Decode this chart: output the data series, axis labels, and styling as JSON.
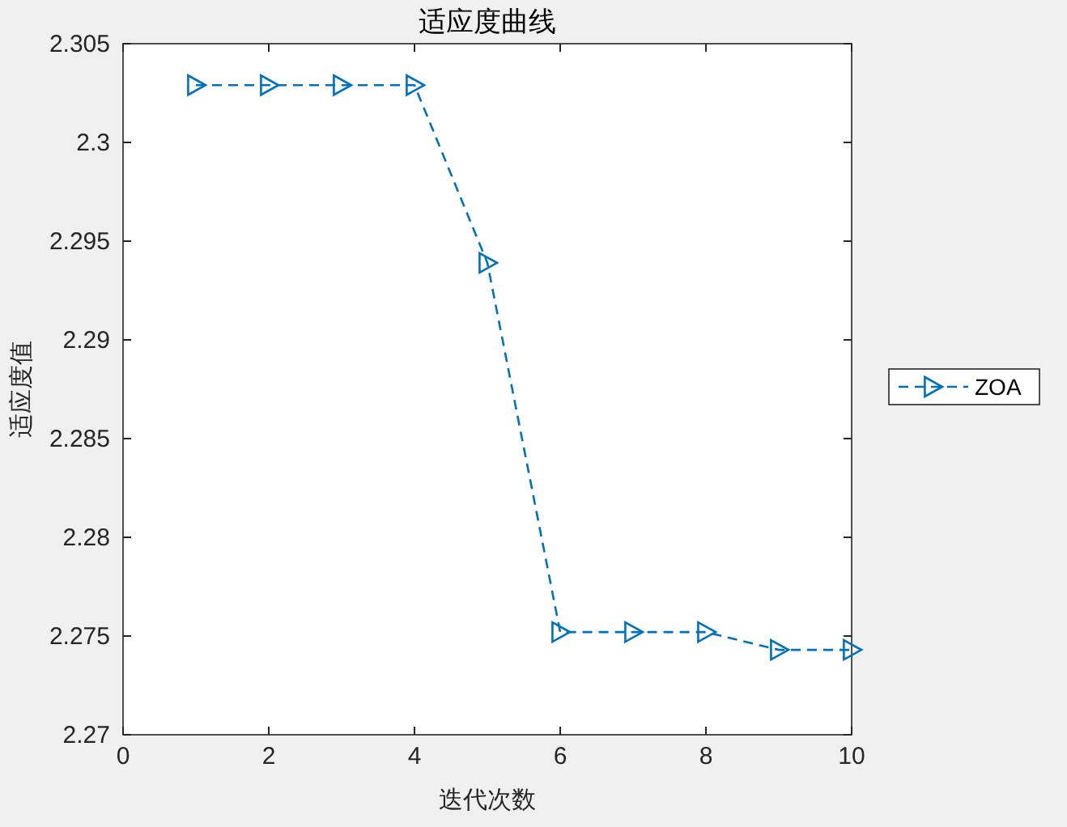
{
  "chart_data": {
    "type": "line",
    "title": "适应度曲线",
    "xlabel": "迭代次数",
    "ylabel": "适应度值",
    "x": [
      1,
      2,
      3,
      4,
      5,
      6,
      7,
      8,
      9,
      10
    ],
    "series": [
      {
        "name": "ZOA",
        "color": "#0072bd",
        "values": [
          2.3029,
          2.3029,
          2.3029,
          2.3029,
          2.2939,
          2.2752,
          2.2752,
          2.2752,
          2.2743,
          2.2743
        ]
      }
    ],
    "xlim": [
      0,
      10
    ],
    "xticks": [
      0,
      2,
      4,
      6,
      8,
      10
    ],
    "ylim": [
      2.27,
      2.305
    ],
    "yticks": [
      2.27,
      2.275,
      2.28,
      2.285,
      2.29,
      2.295,
      2.3,
      2.305
    ],
    "marker": "triangle",
    "line_style": "dashed",
    "legend": "right",
    "grid": false
  }
}
